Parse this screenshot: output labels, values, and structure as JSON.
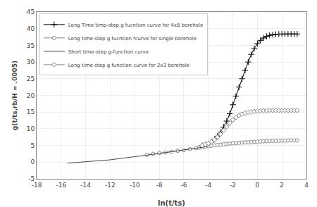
{
  "chart_data": {
    "type": "line",
    "xlabel": "ln(t/ts)",
    "ylabel": "g(t/ts,rb/H = .0005)",
    "xlim": [
      -18,
      4
    ],
    "ylim": [
      -5,
      45
    ],
    "xticks": [
      -18,
      -16,
      -14,
      -12,
      -10,
      -8,
      -6,
      -4,
      -2,
      0,
      2,
      4
    ],
    "yticks": [
      -5,
      0,
      5,
      10,
      15,
      20,
      25,
      30,
      35,
      40,
      45
    ],
    "grid": true,
    "legend": "upper left",
    "series": [
      {
        "name": "Long Time timp-step g fucntion curve for 4x8 borehole",
        "color": "#000000",
        "marker": "plus",
        "x": [
          -4.5,
          -4.25,
          -4.0,
          -3.75,
          -3.5,
          -3.25,
          -3.0,
          -2.75,
          -2.5,
          -2.25,
          -2.0,
          -1.75,
          -1.5,
          -1.25,
          -1.0,
          -0.75,
          -0.5,
          -0.25,
          0.0,
          0.25,
          0.5,
          0.75,
          1.0,
          1.25,
          1.5,
          1.75,
          2.0,
          2.25,
          2.5,
          2.75,
          3.0,
          3.25
        ],
        "values": [
          5.0,
          5.2,
          5.5,
          6.0,
          6.8,
          7.8,
          9.0,
          10.5,
          12.3,
          14.5,
          17.2,
          19.8,
          22.5,
          25.0,
          27.5,
          30.0,
          32.3,
          34.0,
          35.5,
          36.5,
          37.2,
          37.7,
          38.0,
          38.2,
          38.3,
          38.35,
          38.4,
          38.4,
          38.4,
          38.4,
          38.4,
          38.4
        ]
      },
      {
        "name": "Long time-step g fucntion fcurve for single borehole",
        "color": "#888888",
        "marker": "circle_open",
        "x": [
          -9.0,
          -8.5,
          -8.0,
          -7.5,
          -7.0,
          -6.5,
          -6.0,
          -5.5,
          -5.0,
          -4.75,
          -4.5,
          -4.25,
          -4.0,
          -3.75,
          -3.5,
          -3.25,
          -3.0,
          -2.75,
          -2.5,
          -2.25,
          -2.0,
          -1.75,
          -1.5,
          -1.25,
          -1.0,
          -0.75,
          -0.5,
          -0.25,
          0.0,
          0.25,
          0.5,
          0.75,
          1.0,
          1.25,
          1.5,
          1.75,
          2.0,
          2.25,
          2.5,
          2.75,
          3.0,
          3.25
        ],
        "values": [
          2.2,
          2.5,
          2.7,
          2.9,
          3.1,
          3.4,
          3.6,
          3.9,
          4.2,
          4.35,
          4.5,
          4.65,
          4.8,
          4.9,
          5.05,
          5.15,
          5.25,
          5.35,
          5.45,
          5.55,
          5.65,
          5.72,
          5.8,
          5.87,
          5.93,
          5.97,
          6.0,
          6.1,
          6.15,
          6.2,
          6.25,
          6.3,
          6.35,
          6.38,
          6.4,
          6.42,
          6.45,
          6.47,
          6.5,
          6.5,
          6.5,
          6.5
        ]
      },
      {
        "name": "Short time-step g-function curve",
        "color": "#444444",
        "marker": "none",
        "x": [
          -15.5,
          -15.0,
          -14.5,
          -14.0,
          -13.5,
          -13.0,
          -12.5,
          -12.0,
          -11.5,
          -11.0,
          -10.5,
          -10.0,
          -9.5,
          -9.0,
          -8.5,
          -8.0,
          -7.5,
          -7.0,
          -6.5,
          -6.0,
          -5.5,
          -5.0,
          -4.5,
          -4.0
        ],
        "values": [
          -0.3,
          -0.15,
          -0.05,
          0.0,
          0.15,
          0.3,
          0.5,
          0.7,
          0.95,
          1.15,
          1.4,
          1.6,
          1.85,
          2.1,
          2.35,
          2.6,
          2.85,
          3.05,
          3.3,
          3.55,
          3.8,
          4.1,
          4.45,
          4.8
        ]
      },
      {
        "name": "Long time-step g function curve for 2x3 borehole",
        "color": "#888888",
        "marker": "diamond_open",
        "x": [
          -4.5,
          -4.25,
          -4.0,
          -3.75,
          -3.5,
          -3.25,
          -3.0,
          -2.75,
          -2.5,
          -2.25,
          -2.0,
          -1.75,
          -1.5,
          -1.25,
          -1.0,
          -0.75,
          -0.5,
          -0.25,
          0.0,
          0.25,
          0.5,
          0.75,
          1.0,
          1.25,
          1.5,
          1.75,
          2.0,
          2.25,
          2.5,
          2.75,
          3.0,
          3.25
        ],
        "values": [
          5.0,
          5.3,
          5.6,
          6.1,
          6.7,
          7.5,
          8.4,
          9.5,
          10.6,
          11.7,
          12.7,
          13.4,
          14.0,
          14.4,
          14.7,
          14.9,
          15.1,
          15.2,
          15.3,
          15.35,
          15.4,
          15.45,
          15.5,
          15.5,
          15.5,
          15.5,
          15.5,
          15.5,
          15.5,
          15.5,
          15.5,
          15.5
        ]
      }
    ]
  }
}
